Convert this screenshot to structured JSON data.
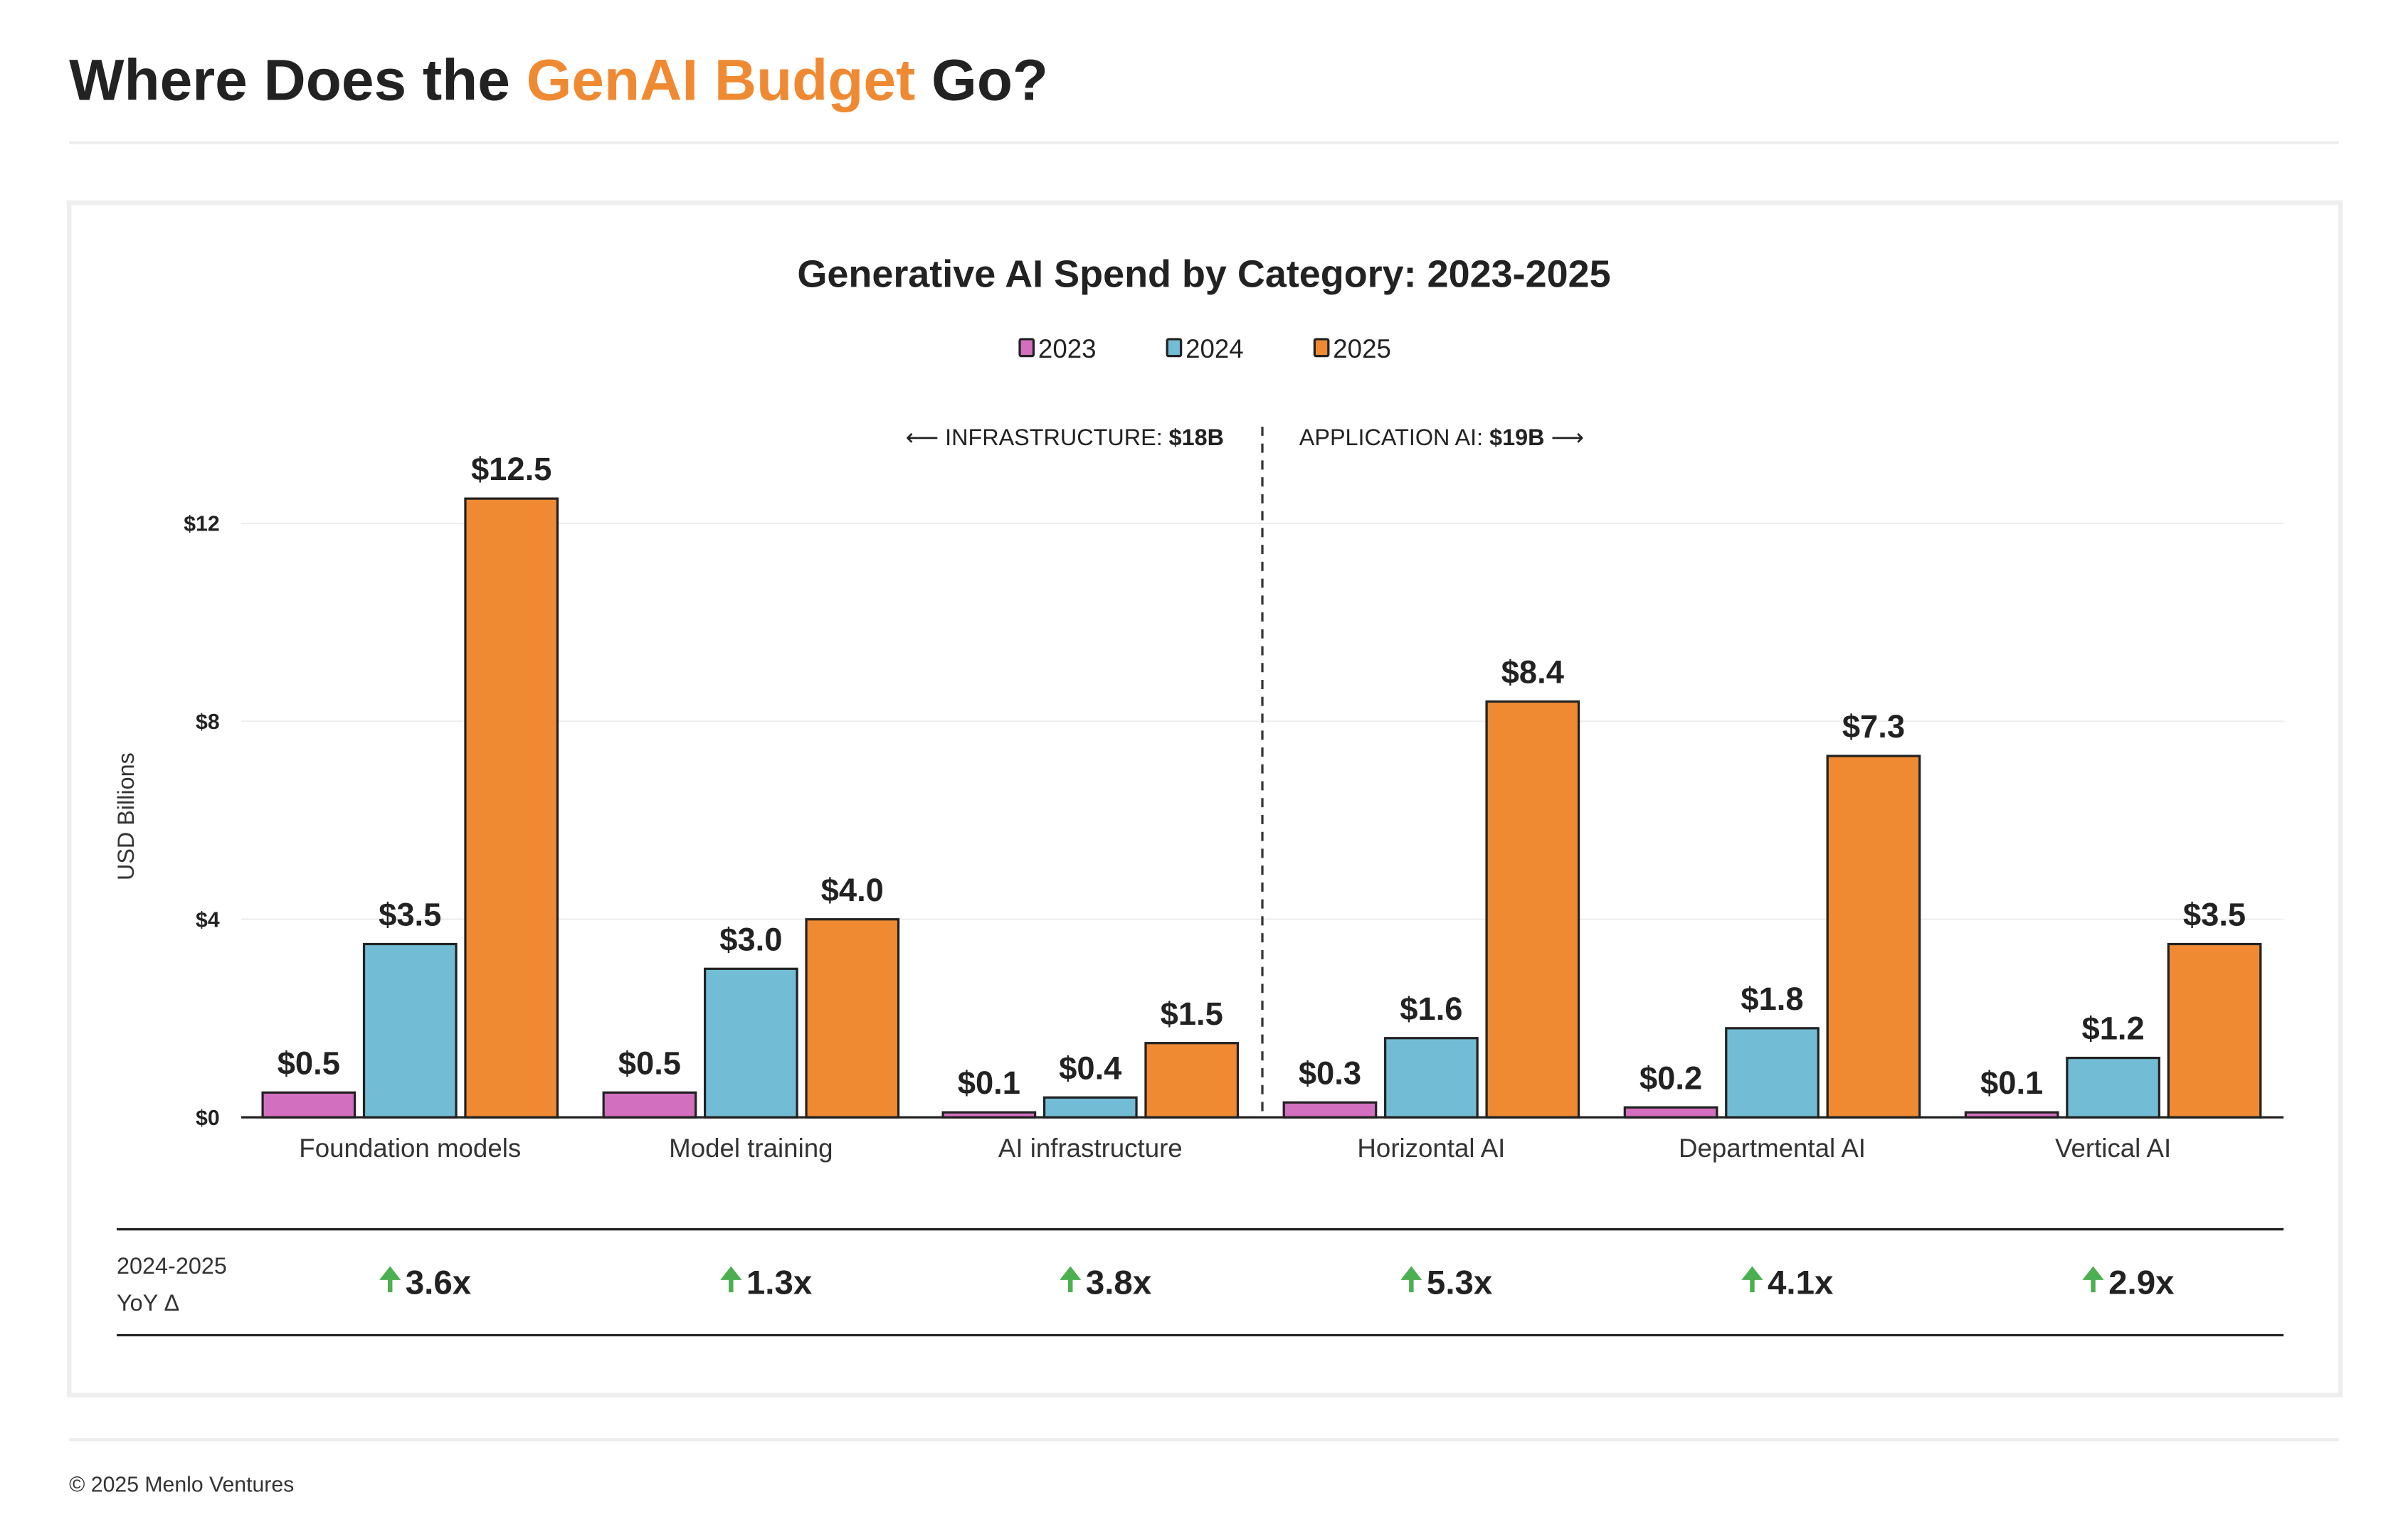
{
  "header": {
    "title_part1": "Where Does the ",
    "title_highlight": "GenAI Budget",
    "title_part2": " Go?",
    "highlight_color": "#ef8a33"
  },
  "chart_data": {
    "type": "bar",
    "title": "Generative AI Spend by Category: 2023-2025",
    "ylabel": "USD Billions",
    "ylim": [
      0,
      13
    ],
    "yticks": [
      0,
      4,
      8,
      12
    ],
    "ytick_labels": [
      "$0",
      "$4",
      "$8",
      "$12"
    ],
    "grid": true,
    "legend_position": "top",
    "categories": [
      "Foundation models",
      "Model training",
      "AI infrastructure",
      "Horizontal AI",
      "Departmental AI",
      "Vertical AI"
    ],
    "series": [
      {
        "name": "2023",
        "color": "#d36fbf",
        "values": [
          0.5,
          0.5,
          0.1,
          0.3,
          0.2,
          0.1
        ],
        "labels": [
          "$0.5",
          "$0.5",
          "$0.1",
          "$0.3",
          "$0.2",
          "$0.1"
        ]
      },
      {
        "name": "2024",
        "color": "#72bdd5",
        "values": [
          3.5,
          3.0,
          0.4,
          1.6,
          1.8,
          1.2
        ],
        "labels": [
          "$3.5",
          "$3.0",
          "$0.4",
          "$1.6",
          "$1.8",
          "$1.2"
        ]
      },
      {
        "name": "2025",
        "color": "#ef8a33",
        "values": [
          12.5,
          4.0,
          1.5,
          8.4,
          7.3,
          3.5
        ],
        "labels": [
          "$12.5",
          "$4.0",
          "$1.5",
          "$8.4",
          "$7.3",
          "$3.5"
        ]
      }
    ],
    "sections": {
      "left_label": "⟵ INFRASTRUCTURE: ",
      "left_value": "$18B",
      "right_label": "APPLICATION AI: ",
      "right_value": "$19B",
      "right_arrow": " ⟶"
    },
    "yoy": {
      "row_label_line1": "2024-2025",
      "row_label_line2": "YoY Δ",
      "values": [
        "3.6x",
        "1.3x",
        "3.8x",
        "5.3x",
        "4.1x",
        "2.9x"
      ],
      "icon": "arrow-up-icon",
      "icon_color": "#4caf50"
    }
  },
  "footer": {
    "copyright": "© 2025 Menlo Ventures"
  }
}
